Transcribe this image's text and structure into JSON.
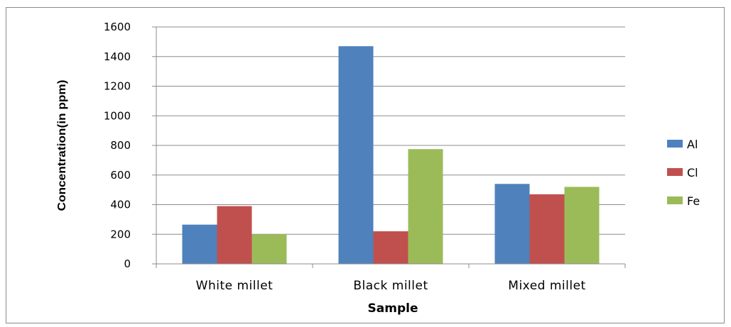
{
  "chart_data": {
    "type": "bar",
    "title": "",
    "xlabel": "Sample",
    "ylabel": "Concentration(in ppm)",
    "categories": [
      "White millet",
      "Black millet",
      "Mixed millet"
    ],
    "series": [
      {
        "name": "Al",
        "color": "#4f81bd",
        "values": [
          265,
          1470,
          540
        ]
      },
      {
        "name": "Cl",
        "color": "#c0504d",
        "values": [
          390,
          220,
          470
        ]
      },
      {
        "name": "Fe",
        "color": "#9bbb59",
        "values": [
          200,
          775,
          520
        ]
      }
    ],
    "ylim": [
      0,
      1600
    ],
    "yticks": [
      0,
      200,
      400,
      600,
      800,
      1000,
      1200,
      1400,
      1600
    ],
    "grid": true,
    "legend_position": "right"
  }
}
